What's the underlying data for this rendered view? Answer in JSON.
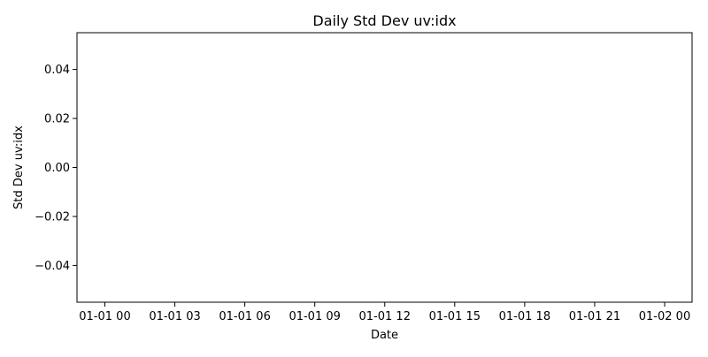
{
  "chart_data": {
    "type": "line",
    "title": "Daily Std Dev uv:idx",
    "xlabel": "Date",
    "ylabel": "Std Dev uv:idx",
    "x_ticks": [
      "01-01 00",
      "01-01 03",
      "01-01 06",
      "01-01 09",
      "01-01 12",
      "01-01 15",
      "01-01 18",
      "01-01 21",
      "01-02 00"
    ],
    "y_ticks": [
      "−0.04",
      "−0.02",
      "0.00",
      "0.02",
      "0.04"
    ],
    "xlim": [
      "01-01 00",
      "01-02 00"
    ],
    "ylim": [
      -0.055,
      0.055
    ],
    "series": [],
    "grid": false,
    "legend": "none"
  }
}
